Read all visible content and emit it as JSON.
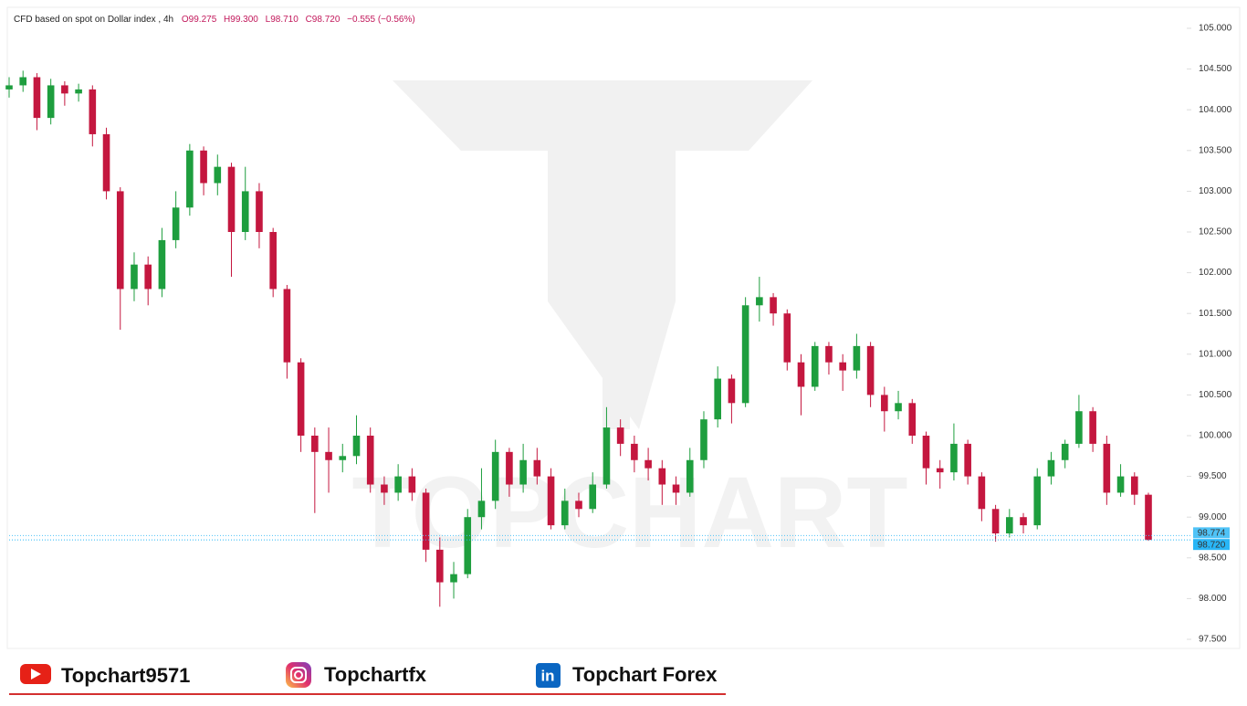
{
  "chart_data": {
    "type": "candlestick",
    "symbol": "CFD based on spot on Dollar index , 4h",
    "ohlc_labels": [
      "O99.275",
      "H99.300",
      "L98.710",
      "C98.720",
      "−0.555 (−0.56%)"
    ],
    "watermark": "TOPCHART",
    "up_color": "#1e9e3e",
    "down_color": "#c4173f",
    "open": [
      104.25,
      104.3,
      104.4,
      103.9,
      104.3,
      104.2,
      104.25,
      103.7,
      103.0,
      101.8,
      102.1,
      101.8,
      102.4,
      102.8,
      103.5,
      103.1,
      103.3,
      102.5,
      103.0,
      102.5,
      101.8,
      100.9,
      100.0,
      99.8,
      99.7,
      99.75,
      100.0,
      99.4,
      99.3,
      99.5,
      99.3,
      98.6,
      98.2,
      98.3,
      99.0,
      99.2,
      99.8,
      99.4,
      99.7,
      99.5,
      98.9,
      99.2,
      99.1,
      99.4,
      100.1,
      99.9,
      99.7,
      99.6,
      99.4,
      99.3,
      99.7,
      100.2,
      100.7,
      100.4,
      101.6,
      101.7,
      101.5,
      100.9,
      100.6,
      101.1,
      100.9,
      100.8,
      101.1,
      100.5,
      100.3,
      100.4,
      100.0,
      99.6,
      99.55,
      99.9,
      99.5,
      99.1,
      98.8,
      99.0,
      98.9,
      99.5,
      99.7,
      99.9,
      100.3,
      99.9,
      99.3,
      99.5,
      99.275
    ],
    "high": [
      104.4,
      104.48,
      104.45,
      104.38,
      104.35,
      104.32,
      104.3,
      103.78,
      103.05,
      102.25,
      102.2,
      102.55,
      103.0,
      103.58,
      103.55,
      103.45,
      103.35,
      103.3,
      103.1,
      102.55,
      101.85,
      100.95,
      100.1,
      100.1,
      99.9,
      100.25,
      100.1,
      99.5,
      99.65,
      99.6,
      99.35,
      98.75,
      98.45,
      99.1,
      99.6,
      99.95,
      99.85,
      99.9,
      99.85,
      99.6,
      99.35,
      99.3,
      99.55,
      100.35,
      100.2,
      100.0,
      99.85,
      99.7,
      99.5,
      99.85,
      100.3,
      100.85,
      100.75,
      101.7,
      101.95,
      101.75,
      101.55,
      101.0,
      101.15,
      101.15,
      101.0,
      101.25,
      101.15,
      100.6,
      100.55,
      100.45,
      100.05,
      99.7,
      100.15,
      99.95,
      99.55,
      99.15,
      99.1,
      99.05,
      99.6,
      99.8,
      99.95,
      100.5,
      100.35,
      100.0,
      99.65,
      99.55,
      99.3
    ],
    "low": [
      104.15,
      104.22,
      103.75,
      103.82,
      104.05,
      104.1,
      103.55,
      102.9,
      101.3,
      101.65,
      101.6,
      101.7,
      102.3,
      102.7,
      102.95,
      102.95,
      101.95,
      102.4,
      102.3,
      101.7,
      100.7,
      99.8,
      99.05,
      99.3,
      99.55,
      99.65,
      99.3,
      99.15,
      99.2,
      99.2,
      98.45,
      97.9,
      98.0,
      98.25,
      98.85,
      99.1,
      99.25,
      99.3,
      99.4,
      98.85,
      98.85,
      99.0,
      99.05,
      99.35,
      99.75,
      99.55,
      99.45,
      99.15,
      99.15,
      99.25,
      99.6,
      100.1,
      100.15,
      100.35,
      101.4,
      101.35,
      100.8,
      100.25,
      100.55,
      100.75,
      100.55,
      100.7,
      100.35,
      100.05,
      100.2,
      99.9,
      99.4,
      99.35,
      99.45,
      99.4,
      98.95,
      98.7,
      98.75,
      98.8,
      98.85,
      99.4,
      99.6,
      99.85,
      99.8,
      99.15,
      99.25,
      99.15,
      98.71
    ],
    "close": [
      104.3,
      104.4,
      103.9,
      104.3,
      104.2,
      104.25,
      103.7,
      103.0,
      101.8,
      102.1,
      101.8,
      102.4,
      102.8,
      103.5,
      103.1,
      103.3,
      102.5,
      103.0,
      102.5,
      101.8,
      100.9,
      100.0,
      99.8,
      99.7,
      99.75,
      100.0,
      99.4,
      99.3,
      99.5,
      99.3,
      98.6,
      98.2,
      98.3,
      99.0,
      99.2,
      99.8,
      99.4,
      99.7,
      99.5,
      98.9,
      99.2,
      99.1,
      99.4,
      100.1,
      99.9,
      99.7,
      99.6,
      99.4,
      99.3,
      99.7,
      100.2,
      100.7,
      100.4,
      101.6,
      101.7,
      101.5,
      100.9,
      100.6,
      101.1,
      100.9,
      100.8,
      101.1,
      100.5,
      100.3,
      100.4,
      100.0,
      99.6,
      99.55,
      99.9,
      99.5,
      99.1,
      98.8,
      99.0,
      98.9,
      99.5,
      99.7,
      99.9,
      100.3,
      99.9,
      99.3,
      99.5,
      99.275,
      98.72
    ],
    "ylim": [
      97.5,
      105.0
    ],
    "yticks": [
      {
        "value": 97.5,
        "label": "97.500"
      },
      {
        "value": 98.0,
        "label": "98.000"
      },
      {
        "value": 98.5,
        "label": "98.500"
      },
      {
        "value": 99.0,
        "label": "99.000"
      },
      {
        "value": 99.5,
        "label": "99.500"
      },
      {
        "value": 100.0,
        "label": "100.000"
      },
      {
        "value": 100.5,
        "label": "100.500"
      },
      {
        "value": 101.0,
        "label": "101.000"
      },
      {
        "value": 101.5,
        "label": "101.500"
      },
      {
        "value": 102.0,
        "label": "102.000"
      },
      {
        "value": 102.5,
        "label": "102.500"
      },
      {
        "value": 103.0,
        "label": "103.000"
      },
      {
        "value": 103.5,
        "label": "103.500"
      },
      {
        "value": 104.0,
        "label": "104.000"
      },
      {
        "value": 104.5,
        "label": "104.500"
      },
      {
        "value": 105.0,
        "label": "105.000"
      }
    ],
    "price_lines": [
      {
        "value": 98.774,
        "label": "98.774",
        "color": "#4fc3f7"
      },
      {
        "value": 98.72,
        "label": "98.720",
        "color": "#29b6f6"
      }
    ]
  },
  "footer": {
    "youtube": "Topchart9571",
    "instagram": "Topchartfx",
    "linkedin": "Topchart Forex"
  }
}
